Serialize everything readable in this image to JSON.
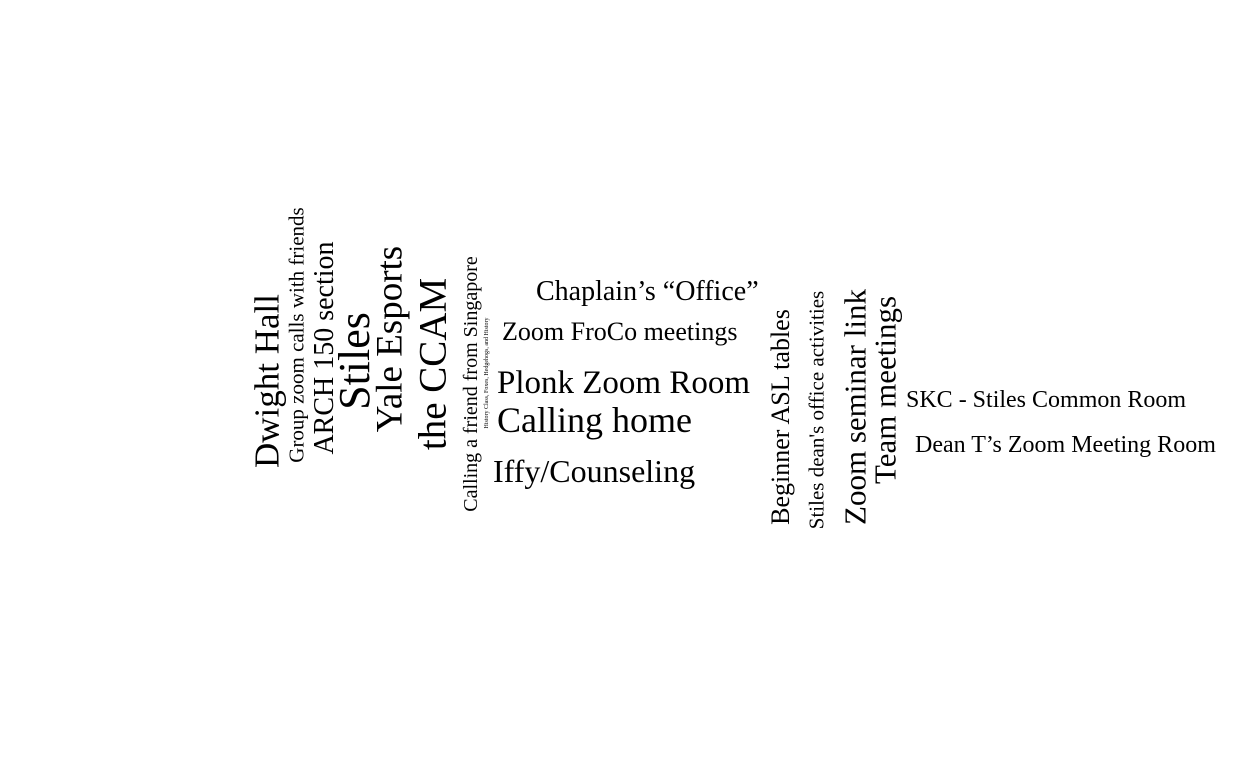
{
  "word_cloud": {
    "words": [
      {
        "id": "dwight-hall",
        "text": "Dwight Hall"
      },
      {
        "id": "group-zoom-calls",
        "text": "Group zoom calls with friends"
      },
      {
        "id": "arch-150-section",
        "text": "ARCH 150 section"
      },
      {
        "id": "stiles",
        "text": "Stiles"
      },
      {
        "id": "yale-esports",
        "text": "Yale Esports"
      },
      {
        "id": "the-ccam",
        "text": "the CCAM"
      },
      {
        "id": "calling-a-friend",
        "text": "Calling a friend from Singapore"
      },
      {
        "id": "history-class",
        "text": "History Class, Foxes, Hedgehogs, and History"
      },
      {
        "id": "chaplains-office",
        "text": "Chaplain’s “Office”"
      },
      {
        "id": "zoom-froco-meetings",
        "text": "Zoom FroCo meetings"
      },
      {
        "id": "plonk-zoom-room",
        "text": "Plonk Zoom Room"
      },
      {
        "id": "calling-home",
        "text": "Calling home"
      },
      {
        "id": "iffy-counseling",
        "text": "Iffy/Counseling"
      },
      {
        "id": "beginner-asl-tables",
        "text": "Beginner ASL tables"
      },
      {
        "id": "stiles-deans-office",
        "text": "Stiles dean's office activities"
      },
      {
        "id": "zoom-seminar-link",
        "text": "Zoom seminar link"
      },
      {
        "id": "team-meetings",
        "text": "Team meetings"
      },
      {
        "id": "skc-stiles-common-room",
        "text": "SKC - Stiles Common Room"
      },
      {
        "id": "dean-t-zoom-room",
        "text": "Dean T’s Zoom Meeting Room"
      }
    ]
  }
}
